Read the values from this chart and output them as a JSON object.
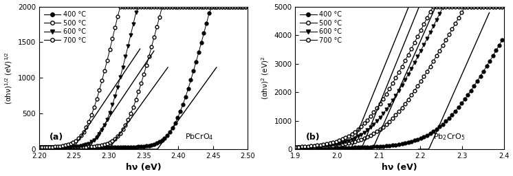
{
  "panel_a": {
    "label": "(a)",
    "compound": "PbCrO$_4$",
    "xlabel": "hν (eV)",
    "ylabel": "(αhν)$^{1/2}$ (eV)$^{1/2}$",
    "xlim": [
      2.2,
      2.5
    ],
    "ylim": [
      0,
      2000
    ],
    "xticks": [
      2.2,
      2.25,
      2.3,
      2.35,
      2.4,
      2.45,
      2.5
    ],
    "yticks": [
      0,
      500,
      1000,
      1500,
      2000
    ],
    "curves": [
      {
        "label": "400 °C",
        "marker": "o",
        "fillstyle": "full",
        "Eg": 2.395,
        "k": 80,
        "ymax": 1900
      },
      {
        "label": "500 °C",
        "marker": "o",
        "fillstyle": "none",
        "Eg": 2.325,
        "k": 80,
        "ymax": 1900
      },
      {
        "label": "600 °C",
        "marker": "v",
        "fillstyle": "full",
        "Eg": 2.295,
        "k": 90,
        "ymax": 1900
      },
      {
        "label": "700 °C",
        "marker": "o",
        "fillstyle": "none",
        "Eg": 2.27,
        "k": 90,
        "ymax": 1900
      }
    ],
    "fit_lines": [
      {
        "x1": 2.31,
        "x2": 2.455,
        "Eg_fit": 2.37,
        "slope": 13500
      },
      {
        "x1": 2.24,
        "x2": 2.385,
        "Eg_fit": 2.3,
        "slope": 13500
      },
      {
        "x1": 2.215,
        "x2": 2.365,
        "Eg_fit": 2.27,
        "slope": 14500
      },
      {
        "x1": 2.195,
        "x2": 2.345,
        "Eg_fit": 2.248,
        "slope": 14500
      }
    ]
  },
  "panel_b": {
    "label": "(b)",
    "compound": "Pb$_2$CrO$_5$",
    "xlabel": "hν (eV)",
    "ylabel": "(αhν)$^2$ (eV)$^2$",
    "xlim": [
      1.9,
      2.4
    ],
    "ylim": [
      0,
      5000
    ],
    "xticks": [
      1.9,
      2.0,
      2.1,
      2.2,
      2.3,
      2.4
    ],
    "yticks": [
      0,
      1000,
      2000,
      3000,
      4000,
      5000
    ],
    "curves": [
      {
        "label": "400 °C",
        "marker": "o",
        "fillstyle": "full",
        "Eg": 2.255,
        "k": 22,
        "ymax": 4800
      },
      {
        "label": "500 °C",
        "marker": "o",
        "fillstyle": "none",
        "Eg": 2.12,
        "k": 22,
        "ymax": 4800
      },
      {
        "label": "600 °C",
        "marker": "v",
        "fillstyle": "full",
        "Eg": 2.09,
        "k": 25,
        "ymax": 4800
      },
      {
        "label": "700 °C",
        "marker": "o",
        "fillstyle": "none",
        "Eg": 2.065,
        "k": 25,
        "ymax": 4800
      }
    ],
    "fit_lines": [
      {
        "x1": 2.195,
        "x2": 2.365,
        "Eg_fit": 2.22,
        "slope": 33000
      },
      {
        "x1": 2.065,
        "x2": 2.235,
        "Eg_fit": 2.085,
        "slope": 33000
      },
      {
        "x1": 2.04,
        "x2": 2.215,
        "Eg_fit": 2.058,
        "slope": 36000
      },
      {
        "x1": 2.015,
        "x2": 2.185,
        "Eg_fit": 2.033,
        "slope": 36000
      }
    ]
  },
  "markersize": 3.5,
  "markerstep_a": 5,
  "markerstep_b": 6,
  "linewidth": 0.7,
  "background": "#ffffff"
}
